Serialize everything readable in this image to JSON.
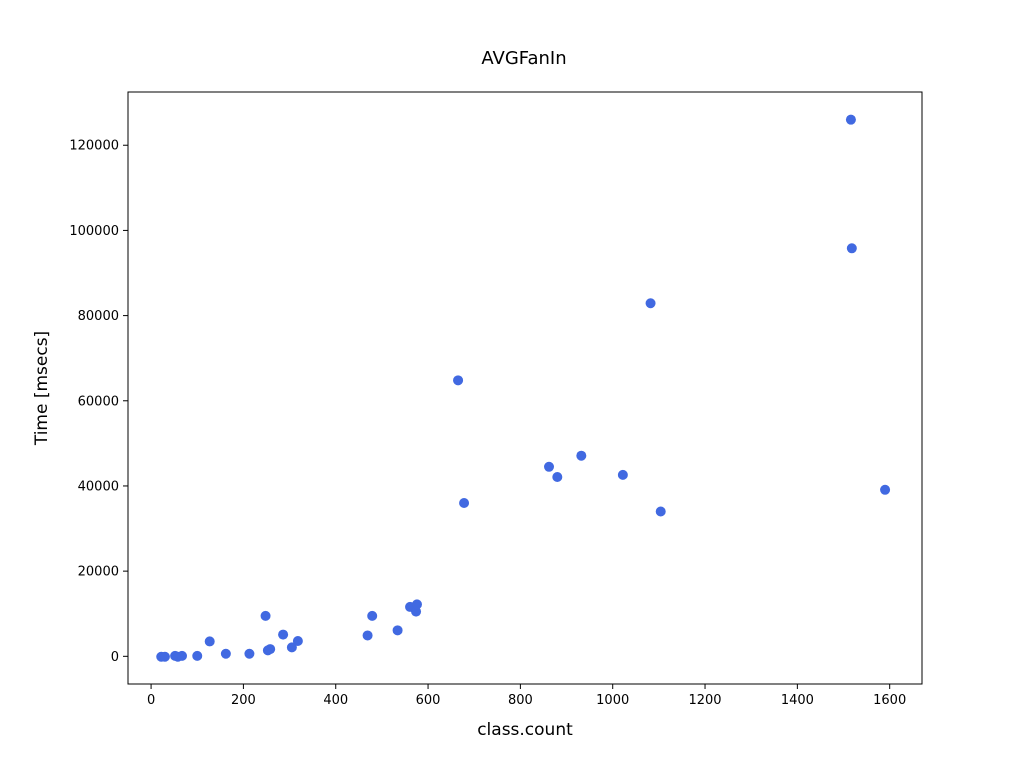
{
  "chart_data": {
    "type": "scatter",
    "title": "AVGFanIn",
    "xlabel": "class.count",
    "ylabel": "Time [msecs]",
    "xlim": [
      -50,
      1670
    ],
    "ylim": [
      -6500,
      132500
    ],
    "xticks": [
      0,
      200,
      400,
      600,
      800,
      1000,
      1200,
      1400,
      1600
    ],
    "yticks": [
      0,
      20000,
      40000,
      60000,
      80000,
      100000,
      120000
    ],
    "grid": false,
    "marker_color": "#4169E1",
    "points": [
      {
        "x": 22,
        "y": -100
      },
      {
        "x": 30,
        "y": -100
      },
      {
        "x": 52,
        "y": 100
      },
      {
        "x": 58,
        "y": -100
      },
      {
        "x": 67,
        "y": 100
      },
      {
        "x": 100,
        "y": 100
      },
      {
        "x": 127,
        "y": 3500
      },
      {
        "x": 162,
        "y": 600
      },
      {
        "x": 213,
        "y": 600
      },
      {
        "x": 248,
        "y": 9500
      },
      {
        "x": 253,
        "y": 1400
      },
      {
        "x": 258,
        "y": 1700
      },
      {
        "x": 286,
        "y": 5100
      },
      {
        "x": 305,
        "y": 2100
      },
      {
        "x": 318,
        "y": 3600
      },
      {
        "x": 469,
        "y": 4900
      },
      {
        "x": 479,
        "y": 9500
      },
      {
        "x": 534,
        "y": 6100
      },
      {
        "x": 561,
        "y": 11600
      },
      {
        "x": 574,
        "y": 10500
      },
      {
        "x": 576,
        "y": 12200
      },
      {
        "x": 665,
        "y": 64800
      },
      {
        "x": 678,
        "y": 36000
      },
      {
        "x": 862,
        "y": 44500
      },
      {
        "x": 880,
        "y": 42100
      },
      {
        "x": 932,
        "y": 47100
      },
      {
        "x": 1022,
        "y": 42600
      },
      {
        "x": 1082,
        "y": 82900
      },
      {
        "x": 1104,
        "y": 34000
      },
      {
        "x": 1516,
        "y": 126000
      },
      {
        "x": 1518,
        "y": 95800
      },
      {
        "x": 1590,
        "y": 39100
      }
    ]
  }
}
